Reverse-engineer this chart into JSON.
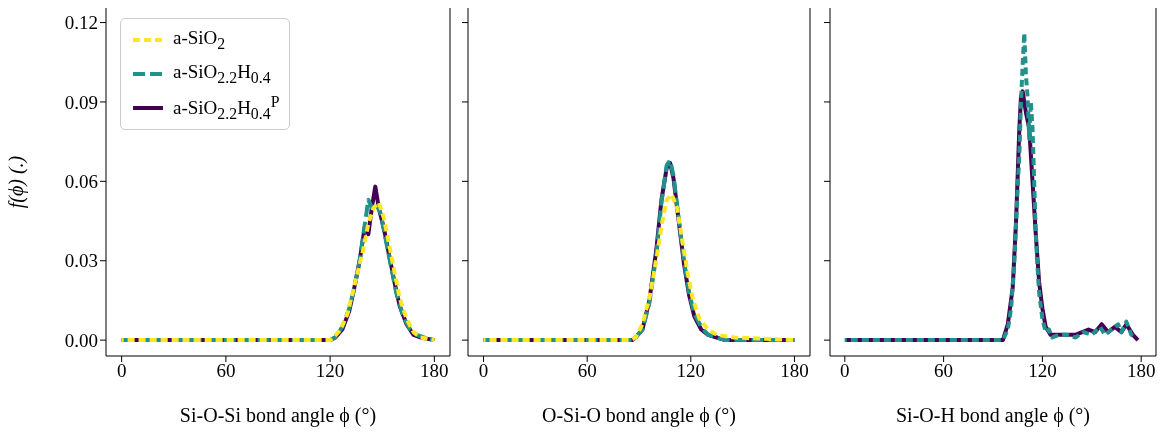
{
  "chart_data": [
    {
      "type": "line",
      "xlabel": "Si-O-Si bond angle ϕ (°)",
      "ylabel": "f(ϕ) (.)",
      "xlim": [
        -9,
        189
      ],
      "ylim": [
        -0.006,
        0.1255
      ],
      "xticks": [
        0,
        60,
        120,
        180
      ],
      "yticks": [
        {
          "value": 0,
          "label": "0.00"
        },
        {
          "value": 0.03,
          "label": "0.03"
        },
        {
          "value": 0.06,
          "label": "0.06"
        },
        {
          "value": 0.09,
          "label": "0.09"
        },
        {
          "value": 0.12,
          "label": "0.12"
        }
      ],
      "legend": "top left",
      "series": [
        {
          "name": "a-SiO$_{2}$",
          "color": "#fde725",
          "line_style": "dashed",
          "x": [
            0,
            120,
            122,
            126,
            130,
            133,
            136,
            139,
            142,
            145,
            148,
            151,
            154,
            157,
            160,
            164,
            168,
            172,
            180
          ],
          "values": [
            0,
            0,
            0.001,
            0.004,
            0.01,
            0.018,
            0.026,
            0.034,
            0.044,
            0.05,
            0.052,
            0.046,
            0.036,
            0.026,
            0.016,
            0.008,
            0.003,
            0.001,
            0
          ]
        },
        {
          "name": "a-SiO$_{2.2}$H$_{0.4}$",
          "color": "#21918c",
          "line_style": "dashed",
          "x": [
            0,
            120,
            123,
            127,
            131,
            134,
            137,
            140,
            142,
            144,
            146,
            149,
            152,
            155,
            158,
            162,
            166,
            170,
            174,
            180
          ],
          "values": [
            0,
            0,
            0.001,
            0.005,
            0.012,
            0.02,
            0.03,
            0.044,
            0.053,
            0.05,
            0.052,
            0.048,
            0.038,
            0.028,
            0.018,
            0.009,
            0.004,
            0.002,
            0.001,
            0
          ]
        },
        {
          "name": "a-SiO$_{2.2}$H$_{0.4}$$^{P}$",
          "color": "#440154",
          "line_style": "solid",
          "x": [
            0,
            120,
            123,
            127,
            131,
            134,
            137,
            140,
            142,
            144,
            146,
            148,
            151,
            154,
            157,
            160,
            164,
            168,
            172,
            180
          ],
          "values": [
            0,
            0,
            0.001,
            0.004,
            0.011,
            0.02,
            0.03,
            0.043,
            0.04,
            0.05,
            0.058,
            0.05,
            0.042,
            0.032,
            0.022,
            0.013,
            0.006,
            0.002,
            0.001,
            0
          ]
        }
      ]
    },
    {
      "type": "line",
      "xlabel": "O-Si-O bond angle ϕ (°)",
      "xlim": [
        -9,
        189
      ],
      "ylim": [
        -0.006,
        0.1255
      ],
      "xticks": [
        0,
        60,
        120,
        180
      ],
      "yticks": [
        0,
        0.03,
        0.06,
        0.09,
        0.12
      ],
      "tick_labels": "x",
      "series": [
        {
          "color": "#fde725",
          "line_style": "dashed",
          "x": [
            0,
            85,
            88,
            92,
            96,
            100,
            103,
            106,
            109,
            112,
            115,
            118,
            121,
            125,
            130,
            135,
            145,
            180
          ],
          "values": [
            0,
            0,
            0.001,
            0.006,
            0.016,
            0.03,
            0.043,
            0.053,
            0.055,
            0.05,
            0.038,
            0.026,
            0.016,
            0.008,
            0.004,
            0.002,
            0.001,
            0
          ]
        },
        {
          "color": "#21918c",
          "line_style": "dashed",
          "x": [
            0,
            86,
            88,
            92,
            96,
            100,
            103,
            106,
            108,
            110,
            113,
            116,
            119,
            122,
            126,
            130,
            135,
            140,
            180
          ],
          "values": [
            0,
            0,
            0.001,
            0.004,
            0.014,
            0.032,
            0.052,
            0.066,
            0.068,
            0.062,
            0.046,
            0.03,
            0.018,
            0.01,
            0.005,
            0.002,
            0.001,
            0,
            0
          ]
        },
        {
          "color": "#440154",
          "line_style": "solid",
          "x": [
            0,
            86,
            88,
            92,
            96,
            100,
            103,
            106,
            108,
            110,
            113,
            116,
            119,
            122,
            126,
            130,
            135,
            140,
            180
          ],
          "values": [
            0,
            0,
            0.001,
            0.004,
            0.015,
            0.034,
            0.053,
            0.065,
            0.067,
            0.061,
            0.045,
            0.029,
            0.017,
            0.009,
            0.004,
            0.002,
            0.001,
            0,
            0
          ]
        }
      ]
    },
    {
      "type": "line",
      "xlabel": "Si-O-H bond angle ϕ (°)",
      "xlim": [
        -9,
        189
      ],
      "ylim": [
        -0.006,
        0.1255
      ],
      "xticks": [
        0,
        60,
        120,
        180
      ],
      "yticks": [
        0,
        0.03,
        0.06,
        0.09,
        0.12
      ],
      "tick_labels": "x",
      "series": [
        {
          "color": "#21918c",
          "line_style": "dashed",
          "x": [
            0,
            96,
            99,
            101,
            103,
            105,
            106,
            107,
            108,
            109,
            110,
            111,
            112,
            113,
            114,
            115,
            116,
            117,
            118,
            120,
            122,
            124,
            126,
            130,
            135,
            140,
            145,
            150,
            155,
            158,
            162,
            166,
            168,
            171,
            174,
            177
          ],
          "values": [
            0,
            0,
            0.004,
            0.012,
            0.03,
            0.058,
            0.07,
            0.09,
            0.104,
            0.116,
            0.1,
            0.092,
            0.076,
            0.09,
            0.08,
            0.06,
            0.04,
            0.028,
            0.018,
            0.008,
            0.003,
            0.004,
            0.001,
            0.002,
            0.002,
            0.001,
            0.003,
            0.002,
            0.005,
            0.002,
            0.004,
            0.006,
            0.003,
            0.007,
            0.002,
            0.001
          ]
        },
        {
          "color": "#440154",
          "line_style": "solid",
          "x": [
            0,
            96,
            99,
            102,
            104,
            106,
            107,
            108,
            110,
            112,
            114,
            116,
            118,
            120,
            122,
            125,
            130,
            140,
            148,
            152,
            156,
            160,
            164,
            168,
            171,
            175,
            178
          ],
          "values": [
            0,
            0,
            0.006,
            0.02,
            0.045,
            0.08,
            0.092,
            0.094,
            0.086,
            0.08,
            0.06,
            0.04,
            0.022,
            0.012,
            0.005,
            0.002,
            0.002,
            0.002,
            0.004,
            0.003,
            0.006,
            0.003,
            0.005,
            0.003,
            0.006,
            0.002,
            0
          ]
        }
      ]
    }
  ]
}
